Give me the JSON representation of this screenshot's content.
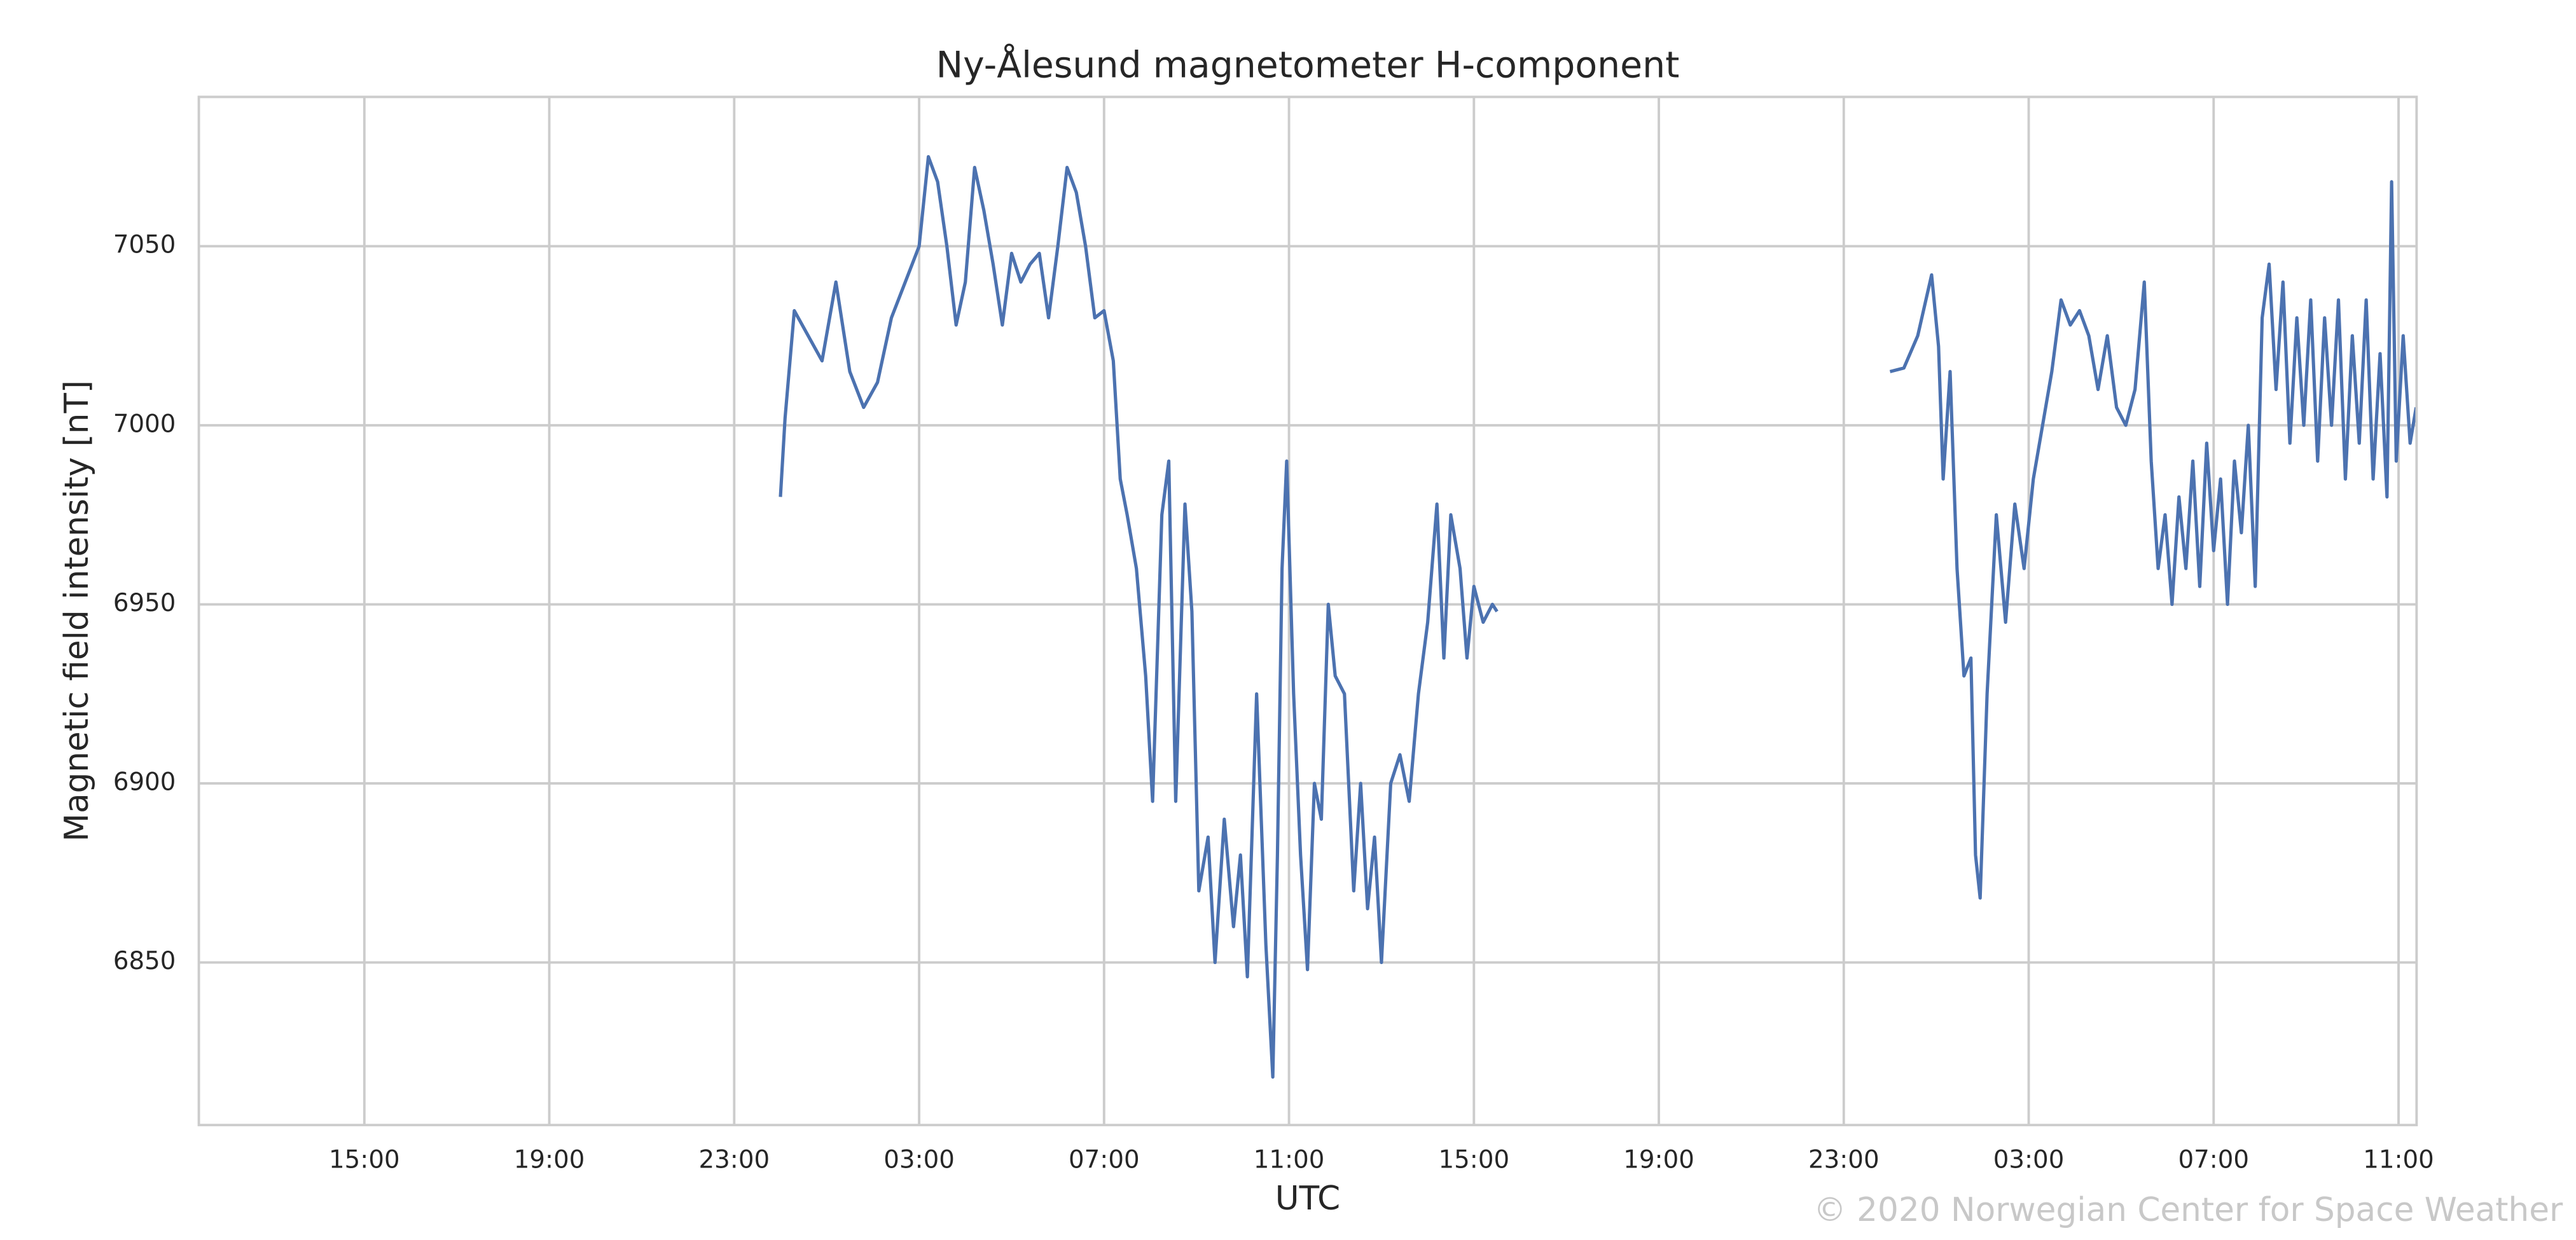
{
  "chart_data": {
    "type": "line",
    "title": "Ny-Ålesund magnetometer H-component",
    "x_label": "UTC",
    "y_label": "Magnetic field intensity [nT]",
    "annotation": "© 2020 Norwegian Center for Space Weather",
    "grid": true,
    "xlim": [
      11.42,
      59.39
    ],
    "ylim": [
      6804.6,
      7091.7
    ],
    "xticks": [
      {
        "value": 15,
        "label": "15:00"
      },
      {
        "value": 19,
        "label": "19:00"
      },
      {
        "value": 23,
        "label": "23:00"
      },
      {
        "value": 27,
        "label": "03:00"
      },
      {
        "value": 31,
        "label": "07:00"
      },
      {
        "value": 35,
        "label": "11:00"
      },
      {
        "value": 39,
        "label": "15:00"
      },
      {
        "value": 43,
        "label": "19:00"
      },
      {
        "value": 47,
        "label": "23:00"
      },
      {
        "value": 51,
        "label": "03:00"
      },
      {
        "value": 55,
        "label": "07:00"
      },
      {
        "value": 59,
        "label": "11:00"
      }
    ],
    "yticks": [
      6850,
      6900,
      6950,
      7000,
      7050
    ],
    "x": [
      24.0,
      24.1,
      24.3,
      24.6,
      24.9,
      25.2,
      25.5,
      25.8,
      26.1,
      26.4,
      26.7,
      27.0,
      27.2,
      27.4,
      27.6,
      27.8,
      28.0,
      28.2,
      28.4,
      28.6,
      28.8,
      29.0,
      29.2,
      29.4,
      29.6,
      29.8,
      30.0,
      30.2,
      30.4,
      30.6,
      30.8,
      31.0,
      31.2,
      31.35,
      31.5,
      31.7,
      31.9,
      32.05,
      32.25,
      32.4,
      32.55,
      32.75,
      32.9,
      33.05,
      33.25,
      33.4,
      33.6,
      33.8,
      33.95,
      34.1,
      34.3,
      34.5,
      34.65,
      34.75,
      34.85,
      34.95,
      35.1,
      35.25,
      35.4,
      35.55,
      35.7,
      35.85,
      36.0,
      36.2,
      36.4,
      36.55,
      36.7,
      36.85,
      37.0,
      37.2,
      37.4,
      37.6,
      37.8,
      38.0,
      38.2,
      38.35,
      38.5,
      38.7,
      38.85,
      39.0,
      39.2,
      39.4,
      39.5,
      44.0,
      48.0,
      48.3,
      48.6,
      48.9,
      49.05,
      49.15,
      49.3,
      49.45,
      49.6,
      49.75,
      49.85,
      49.95,
      50.1,
      50.3,
      50.5,
      50.7,
      50.9,
      51.1,
      51.3,
      51.5,
      51.7,
      51.9,
      52.1,
      52.3,
      52.5,
      52.7,
      52.9,
      53.1,
      53.3,
      53.5,
      53.65,
      53.8,
      53.95,
      54.1,
      54.25,
      54.4,
      54.55,
      54.7,
      54.85,
      55.0,
      55.15,
      55.3,
      55.45,
      55.6,
      55.75,
      55.9,
      56.05,
      56.2,
      56.35,
      56.5,
      56.65,
      56.8,
      56.95,
      57.1,
      57.25,
      57.4,
      57.55,
      57.7,
      57.85,
      58.0,
      58.15,
      58.3,
      58.45,
      58.6,
      58.75,
      58.85,
      58.95,
      59.1,
      59.25,
      59.38
    ],
    "series": [
      {
        "color": "#4c72b0",
        "values": [
          6980,
          7002,
          7032,
          7025,
          7018,
          7040,
          7015,
          7005,
          7012,
          7030,
          7040,
          7050,
          7075,
          7068,
          7050,
          7028,
          7040,
          7072,
          7060,
          7045,
          7028,
          7048,
          7040,
          7045,
          7048,
          7030,
          7050,
          7072,
          7065,
          7050,
          7030,
          7032,
          7018,
          6985,
          6975,
          6960,
          6930,
          6895,
          6975,
          6990,
          6895,
          6978,
          6948,
          6870,
          6885,
          6850,
          6890,
          6860,
          6880,
          6846,
          6925,
          6855,
          6818,
          6880,
          6960,
          6990,
          6925,
          6880,
          6848,
          6900,
          6890,
          6950,
          6930,
          6925,
          6870,
          6900,
          6865,
          6885,
          6850,
          6900,
          6908,
          6895,
          6925,
          6945,
          6978,
          6935,
          6975,
          6960,
          6935,
          6955,
          6945,
          6950,
          6948,
          null,
          7015,
          7016,
          7025,
          7042,
          7022,
          6985,
          7015,
          6960,
          6930,
          6935,
          6880,
          6868,
          6925,
          6975,
          6945,
          6978,
          6960,
          6985,
          7000,
          7015,
          7035,
          7028,
          7032,
          7025,
          7010,
          7025,
          7005,
          7000,
          7010,
          7040,
          6990,
          6960,
          6975,
          6950,
          6980,
          6960,
          6990,
          6955,
          6995,
          6965,
          6985,
          6950,
          6990,
          6970,
          7000,
          6955,
          7030,
          7045,
          7010,
          7040,
          6995,
          7030,
          7000,
          7035,
          6990,
          7030,
          7000,
          7035,
          6985,
          7025,
          6995,
          7035,
          6985,
          7020,
          6980,
          7068,
          6990,
          7025,
          6995,
          7005
        ]
      }
    ]
  }
}
